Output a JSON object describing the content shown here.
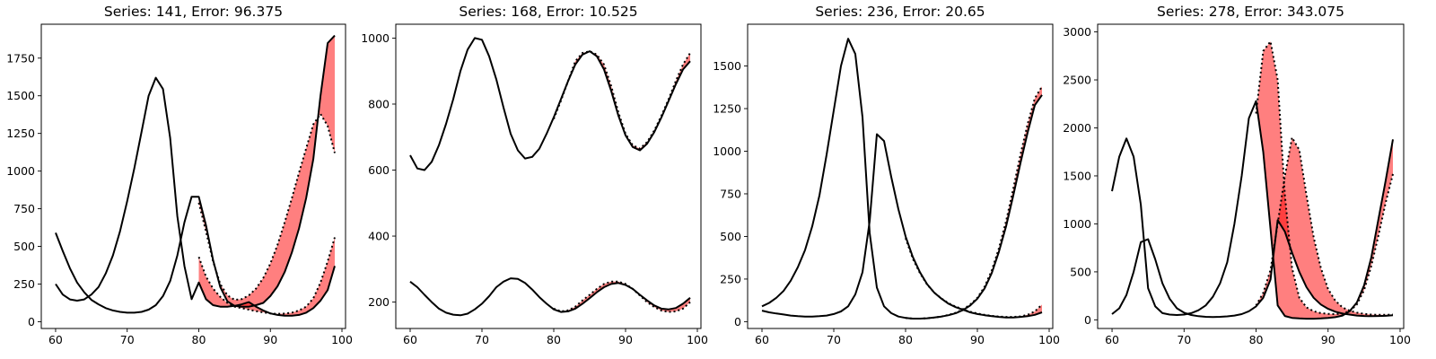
{
  "chart_data": [
    {
      "type": "line",
      "title": "Series: 141, Error: 96.375",
      "xlabel": "",
      "ylabel": "",
      "xlim": [
        58,
        100.5
      ],
      "ylim": [
        -45,
        1975
      ],
      "xticks": [
        60,
        70,
        80,
        90,
        100
      ],
      "yticks": [
        0,
        250,
        500,
        750,
        1000,
        1250,
        1500,
        1750
      ],
      "grid": false,
      "band_color": "#ff0000",
      "series": [
        {
          "x": [
            60,
            61,
            62,
            63,
            64,
            65,
            66,
            67,
            68,
            69,
            70,
            71,
            72,
            73,
            74,
            75,
            76,
            77,
            78,
            79,
            80,
            81,
            82,
            83,
            84,
            85,
            86,
            87,
            88,
            89,
            90,
            91,
            92,
            93,
            94,
            95,
            96,
            97,
            98,
            99
          ],
          "actual": [
            590,
            470,
            355,
            260,
            195,
            145,
            115,
            90,
            75,
            65,
            60,
            60,
            65,
            80,
            110,
            170,
            270,
            440,
            660,
            830,
            830,
            640,
            410,
            230,
            135,
            105,
            100,
            100,
            110,
            125,
            170,
            235,
            330,
            460,
            620,
            820,
            1080,
            1500,
            1850,
            1900
          ],
          "forecast": [
            null,
            null,
            null,
            null,
            null,
            null,
            null,
            null,
            null,
            null,
            null,
            null,
            null,
            null,
            null,
            null,
            null,
            null,
            null,
            null,
            790,
            600,
            400,
            250,
            175,
            145,
            150,
            175,
            220,
            290,
            385,
            510,
            660,
            820,
            990,
            1150,
            1310,
            1380,
            1300,
            1120
          ]
        },
        {
          "x": [
            60,
            61,
            62,
            63,
            64,
            65,
            66,
            67,
            68,
            69,
            70,
            71,
            72,
            73,
            74,
            75,
            76,
            77,
            78,
            79,
            80,
            81,
            82,
            83,
            84,
            85,
            86,
            87,
            88,
            89,
            90,
            91,
            92,
            93,
            94,
            95,
            96,
            97,
            98,
            99
          ],
          "actual": [
            250,
            180,
            148,
            140,
            148,
            180,
            230,
            320,
            440,
            600,
            800,
            1020,
            1260,
            1500,
            1620,
            1545,
            1220,
            700,
            370,
            150,
            260,
            150,
            110,
            100,
            100,
            105,
            115,
            130,
            100,
            75,
            55,
            45,
            40,
            40,
            45,
            60,
            90,
            140,
            210,
            370
          ],
          "forecast": [
            null,
            null,
            null,
            null,
            null,
            null,
            null,
            null,
            null,
            null,
            null,
            null,
            null,
            null,
            null,
            null,
            null,
            null,
            null,
            null,
            430,
            300,
            220,
            165,
            125,
            100,
            90,
            80,
            70,
            62,
            55,
            52,
            54,
            60,
            75,
            100,
            155,
            260,
            400,
            560
          ]
        }
      ]
    },
    {
      "type": "line",
      "title": "Series: 168, Error: 10.525",
      "xlabel": "",
      "ylabel": "",
      "xlim": [
        58,
        100.5
      ],
      "ylim": [
        120,
        1042
      ],
      "xticks": [
        60,
        70,
        80,
        90,
        100
      ],
      "yticks": [
        200,
        400,
        600,
        800,
        1000
      ],
      "grid": false,
      "band_color": "#ff0000",
      "series": [
        {
          "x": [
            60,
            61,
            62,
            63,
            64,
            65,
            66,
            67,
            68,
            69,
            70,
            71,
            72,
            73,
            74,
            75,
            76,
            77,
            78,
            79,
            80,
            81,
            82,
            83,
            84,
            85,
            86,
            87,
            88,
            89,
            90,
            91,
            92,
            93,
            94,
            95,
            96,
            97,
            98,
            99
          ],
          "actual": [
            645,
            605,
            600,
            625,
            675,
            740,
            815,
            900,
            965,
            1000,
            995,
            945,
            875,
            790,
            710,
            660,
            635,
            640,
            665,
            710,
            760,
            815,
            870,
            920,
            950,
            960,
            945,
            905,
            840,
            765,
            705,
            670,
            660,
            680,
            715,
            760,
            810,
            860,
            905,
            930
          ],
          "forecast": [
            null,
            null,
            null,
            null,
            null,
            null,
            null,
            null,
            null,
            null,
            null,
            null,
            null,
            null,
            null,
            null,
            null,
            null,
            null,
            null,
            755,
            810,
            870,
            930,
            955,
            960,
            950,
            920,
            855,
            775,
            710,
            675,
            665,
            685,
            720,
            765,
            815,
            870,
            920,
            955
          ]
        },
        {
          "x": [
            60,
            61,
            62,
            63,
            64,
            65,
            66,
            67,
            68,
            69,
            70,
            71,
            72,
            73,
            74,
            75,
            76,
            77,
            78,
            79,
            80,
            81,
            82,
            83,
            84,
            85,
            86,
            87,
            88,
            89,
            90,
            91,
            92,
            93,
            94,
            95,
            96,
            97,
            98,
            99
          ],
          "actual": [
            262,
            245,
            222,
            200,
            180,
            168,
            162,
            160,
            165,
            178,
            195,
            218,
            245,
            262,
            272,
            270,
            258,
            238,
            215,
            195,
            178,
            170,
            172,
            180,
            195,
            212,
            230,
            245,
            255,
            258,
            252,
            240,
            222,
            205,
            190,
            180,
            178,
            182,
            195,
            213
          ],
          "forecast": [
            null,
            null,
            null,
            null,
            null,
            null,
            null,
            null,
            null,
            null,
            null,
            null,
            null,
            null,
            null,
            null,
            null,
            null,
            null,
            null,
            180,
            172,
            175,
            186,
            205,
            222,
            240,
            255,
            262,
            262,
            255,
            240,
            220,
            200,
            185,
            174,
            170,
            172,
            180,
            200
          ]
        }
      ]
    },
    {
      "type": "line",
      "title": "Series: 236, Error: 20.65",
      "xlabel": "",
      "ylabel": "",
      "xlim": [
        58,
        100.5
      ],
      "ylim": [
        -40,
        1745
      ],
      "xticks": [
        60,
        70,
        80,
        90,
        100
      ],
      "yticks": [
        0,
        250,
        500,
        750,
        1000,
        1250,
        1500
      ],
      "grid": false,
      "band_color": "#ff0000",
      "series": [
        {
          "x": [
            60,
            61,
            62,
            63,
            64,
            65,
            66,
            67,
            68,
            69,
            70,
            71,
            72,
            73,
            74,
            75,
            76,
            77,
            78,
            79,
            80,
            81,
            82,
            83,
            84,
            85,
            86,
            87,
            88,
            89,
            90,
            91,
            92,
            93,
            94,
            95,
            96,
            97,
            98,
            99
          ],
          "actual": [
            90,
            110,
            140,
            180,
            240,
            320,
            420,
            560,
            740,
            980,
            1240,
            1500,
            1660,
            1570,
            1200,
            520,
            200,
            90,
            50,
            30,
            22,
            18,
            18,
            20,
            24,
            30,
            38,
            50,
            68,
            95,
            135,
            195,
            285,
            410,
            560,
            740,
            930,
            1110,
            1270,
            1330
          ],
          "forecast": [
            null,
            null,
            null,
            null,
            null,
            null,
            null,
            null,
            null,
            null,
            null,
            null,
            null,
            null,
            null,
            null,
            null,
            null,
            null,
            null,
            22,
            18,
            18,
            20,
            24,
            30,
            40,
            52,
            72,
            100,
            140,
            205,
            300,
            430,
            590,
            780,
            980,
            1160,
            1310,
            1380
          ]
        },
        {
          "x": [
            60,
            61,
            62,
            63,
            64,
            65,
            66,
            67,
            68,
            69,
            70,
            71,
            72,
            73,
            74,
            75,
            76,
            77,
            78,
            79,
            80,
            81,
            82,
            83,
            84,
            85,
            86,
            87,
            88,
            89,
            90,
            91,
            92,
            93,
            94,
            95,
            96,
            97,
            98,
            99
          ],
          "actual": [
            65,
            55,
            48,
            42,
            36,
            32,
            30,
            30,
            32,
            36,
            45,
            60,
            90,
            160,
            290,
            590,
            1100,
            1060,
            850,
            660,
            500,
            380,
            290,
            220,
            170,
            135,
            105,
            85,
            70,
            55,
            45,
            38,
            32,
            28,
            25,
            25,
            28,
            32,
            40,
            55
          ],
          "forecast": [
            null,
            null,
            null,
            null,
            null,
            null,
            null,
            null,
            null,
            null,
            null,
            null,
            null,
            null,
            null,
            null,
            null,
            null,
            null,
            null,
            490,
            370,
            285,
            218,
            170,
            136,
            108,
            88,
            72,
            58,
            48,
            40,
            34,
            30,
            28,
            28,
            31,
            40,
            60,
            100
          ]
        }
      ]
    },
    {
      "type": "line",
      "title": "Series: 278, Error: 343.075",
      "xlabel": "",
      "ylabel": "",
      "xlim": [
        58,
        100.5
      ],
      "ylim": [
        -90,
        3080
      ],
      "xticks": [
        60,
        70,
        80,
        90,
        100
      ],
      "yticks": [
        0,
        500,
        1000,
        1500,
        2000,
        2500,
        3000
      ],
      "grid": false,
      "band_color": "#ff0000",
      "series": [
        {
          "x": [
            60,
            61,
            62,
            63,
            64,
            65,
            66,
            67,
            68,
            69,
            70,
            71,
            72,
            73,
            74,
            75,
            76,
            77,
            78,
            79,
            80,
            81,
            82,
            83,
            84,
            85,
            86,
            87,
            88,
            89,
            90,
            91,
            92,
            93,
            94,
            95,
            96,
            97,
            98,
            99
          ],
          "actual": [
            1340,
            1700,
            1890,
            1700,
            1200,
            330,
            140,
            70,
            55,
            50,
            55,
            70,
            100,
            150,
            240,
            380,
            600,
            1000,
            1500,
            2100,
            2280,
            1750,
            950,
            150,
            40,
            20,
            15,
            12,
            12,
            15,
            20,
            28,
            45,
            90,
            180,
            360,
            650,
            1050,
            1450,
            1880
          ],
          "forecast": [
            null,
            null,
            null,
            null,
            null,
            null,
            null,
            null,
            null,
            null,
            null,
            null,
            null,
            null,
            null,
            null,
            null,
            null,
            null,
            null,
            2150,
            2800,
            2900,
            2500,
            1300,
            540,
            230,
            130,
            90,
            70,
            62,
            60,
            65,
            90,
            160,
            310,
            560,
            880,
            1220,
            1520
          ]
        },
        {
          "x": [
            60,
            61,
            62,
            63,
            64,
            65,
            66,
            67,
            68,
            69,
            70,
            71,
            72,
            73,
            74,
            75,
            76,
            77,
            78,
            79,
            80,
            81,
            82,
            83,
            84,
            85,
            86,
            87,
            88,
            89,
            90,
            91,
            92,
            93,
            94,
            95,
            96,
            97,
            98,
            99
          ],
          "actual": [
            60,
            120,
            260,
            500,
            810,
            840,
            630,
            380,
            220,
            120,
            75,
            50,
            38,
            32,
            30,
            32,
            36,
            45,
            60,
            90,
            140,
            230,
            420,
            1040,
            920,
            700,
            500,
            340,
            230,
            160,
            115,
            85,
            65,
            55,
            45,
            40,
            38,
            40,
            42,
            48
          ],
          "forecast": [
            null,
            null,
            null,
            null,
            null,
            null,
            null,
            null,
            null,
            null,
            null,
            null,
            null,
            null,
            null,
            null,
            null,
            null,
            null,
            null,
            150,
            280,
            520,
            1000,
            1500,
            1900,
            1770,
            1300,
            860,
            540,
            320,
            200,
            130,
            95,
            75,
            62,
            55,
            52,
            52,
            55
          ]
        }
      ]
    }
  ]
}
